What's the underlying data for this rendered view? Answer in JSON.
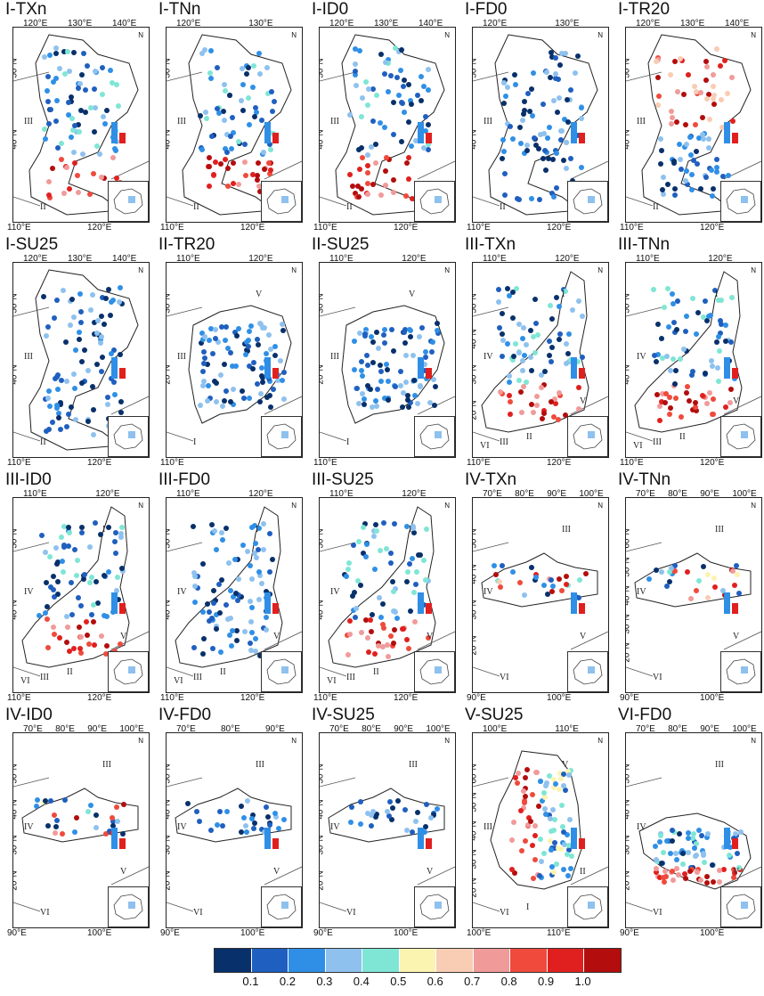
{
  "panels": [
    {
      "title": "I-TXn",
      "x_top": [
        "120°E",
        "130°E",
        "140°E"
      ],
      "x_bottom": [
        "110°E",
        "120°E"
      ],
      "y_ticks": [
        "50°N",
        "40°N"
      ],
      "region_labels": [
        "III",
        "II"
      ],
      "palette": "red-south"
    },
    {
      "title": "I-TNn",
      "x_top": [
        "120°E",
        "130°E"
      ],
      "x_bottom": [
        "110°E",
        "120°E"
      ],
      "y_ticks": [
        "50°N",
        "40°N"
      ],
      "region_labels": [
        "III",
        "II"
      ],
      "palette": "red-south"
    },
    {
      "title": "I-ID0",
      "x_top": [
        "120°E",
        "130°E",
        "140°E"
      ],
      "x_bottom": [
        "110°E",
        "120°E"
      ],
      "y_ticks": [
        "50°N",
        "40°N"
      ],
      "region_labels": [
        "III",
        "II"
      ],
      "palette": "red-south"
    },
    {
      "title": "I-FD0",
      "x_top": [
        "120°E",
        "130°E"
      ],
      "x_bottom": [
        "110°E",
        "120°E"
      ],
      "y_ticks": [
        "50°N",
        "40°N"
      ],
      "region_labels": [
        "III",
        "II"
      ],
      "palette": "blue"
    },
    {
      "title": "I-TR20",
      "x_top": [
        "120°E",
        "130°E",
        "140°E"
      ],
      "x_bottom": [
        "110°E",
        "120°E"
      ],
      "y_ticks": [
        "50°N",
        "40°N"
      ],
      "region_labels": [
        "III",
        "II"
      ],
      "palette": "red-north"
    },
    {
      "title": "I-SU25",
      "x_top": [
        "120°E",
        "130°E",
        "140°E"
      ],
      "x_bottom": [
        "110°E",
        "120°E"
      ],
      "y_ticks": [
        "50°N",
        "40°N"
      ],
      "region_labels": [
        "III",
        "II"
      ],
      "palette": "blue"
    },
    {
      "title": "II-TR20",
      "x_top": [
        "110°E",
        "120°E"
      ],
      "x_bottom": [
        "110°E"
      ],
      "y_ticks": [
        "30°N",
        "20°N"
      ],
      "region_labels": [
        "III",
        "I",
        "V"
      ],
      "palette": "blue"
    },
    {
      "title": "II-SU25",
      "x_top": [
        "110°E",
        "120°E"
      ],
      "x_bottom": [
        "110°E"
      ],
      "y_ticks": [
        "30°N",
        "20°N"
      ],
      "region_labels": [
        "III",
        "I",
        "V"
      ],
      "palette": "blue"
    },
    {
      "title": "III-TXn",
      "x_top": [
        "110°E",
        "120°E"
      ],
      "x_bottom": [
        "110°E",
        "120°E"
      ],
      "y_ticks": [
        "50°N",
        "40°N",
        "30°N",
        "20°N"
      ],
      "region_labels": [
        "IV",
        "III",
        "I",
        "V",
        "II",
        "VI"
      ],
      "palette": "red-south"
    },
    {
      "title": "III-TNn",
      "x_top": [
        "110°E",
        "120°E"
      ],
      "x_bottom": [
        "110°E",
        "120°E"
      ],
      "y_ticks": [
        "50°N",
        "40°N"
      ],
      "region_labels": [
        "IV",
        "III",
        "I",
        "V",
        "II",
        "VI"
      ],
      "palette": "red-south"
    },
    {
      "title": "III-ID0",
      "x_top": [
        "110°E",
        "120°E"
      ],
      "x_bottom": [
        "110°E",
        "120°E"
      ],
      "y_ticks": [
        "50°N",
        "40°N"
      ],
      "region_labels": [
        "IV",
        "III",
        "I",
        "V",
        "II",
        "VI"
      ],
      "palette": "red-south"
    },
    {
      "title": "III-FD0",
      "x_top": [
        "110°E",
        "120°E"
      ],
      "x_bottom": [
        "110°E",
        "120°E"
      ],
      "y_ticks": [
        "50°N",
        "40°N"
      ],
      "region_labels": [
        "IV",
        "III",
        "I",
        "V",
        "II",
        "VI"
      ],
      "palette": "blue"
    },
    {
      "title": "III-SU25",
      "x_top": [
        "110°E",
        "120°E"
      ],
      "x_bottom": [
        "110°E",
        "120°E"
      ],
      "y_ticks": [
        "50°N",
        "40°N"
      ],
      "region_labels": [
        "IV",
        "III",
        "I",
        "V",
        "II",
        "VI"
      ],
      "palette": "red-south"
    },
    {
      "title": "IV-TXn",
      "x_top": [
        "70°E",
        "80°E",
        "90°E",
        "100°E"
      ],
      "x_bottom": [
        "90°E",
        "100°E"
      ],
      "y_ticks": [
        "50°N",
        "40°N",
        "30°N",
        "20°N"
      ],
      "region_labels": [
        "IV",
        "VI",
        "III",
        "V"
      ],
      "palette": "mixed"
    },
    {
      "title": "IV-TNn",
      "x_top": [
        "70°E",
        "80°E",
        "90°E",
        "100°E"
      ],
      "x_bottom": [
        "90°E",
        "100°E"
      ],
      "y_ticks": [
        "60°N",
        "50°N",
        "40°N",
        "30°N",
        "20°N"
      ],
      "region_labels": [
        "IV",
        "VI",
        "III",
        "V"
      ],
      "palette": "mixed"
    },
    {
      "title": "IV-ID0",
      "x_top": [
        "70°E",
        "80°E",
        "90°E",
        "100°E"
      ],
      "x_bottom": [
        "90°E",
        "100°E"
      ],
      "y_ticks": [
        "50°N",
        "40°N",
        "30°N",
        "20°N"
      ],
      "region_labels": [
        "IV",
        "VI",
        "III",
        "V"
      ],
      "palette": "mixed"
    },
    {
      "title": "IV-FD0",
      "x_top": [
        "70°E",
        "80°E",
        "90°E"
      ],
      "x_bottom": [
        "90°E",
        "100°E"
      ],
      "y_ticks": [
        "50°N",
        "40°N",
        "30°N",
        "20°N"
      ],
      "region_labels": [
        "IV",
        "VI",
        "III",
        "V"
      ],
      "palette": "blue"
    },
    {
      "title": "IV-SU25",
      "x_top": [
        "70°E",
        "80°E",
        "90°E",
        "100°E"
      ],
      "x_bottom": [
        "90°E",
        "100°E"
      ],
      "y_ticks": [
        "50°N",
        "40°N",
        "30°N",
        "20°N"
      ],
      "region_labels": [
        "IV",
        "VI",
        "III",
        "V"
      ],
      "palette": "blue"
    },
    {
      "title": "V-SU25",
      "x_top": [
        "100°E",
        "110°E"
      ],
      "x_bottom": [
        "100°E",
        "110°E"
      ],
      "y_ticks": [
        "60°N",
        "50°N",
        "40°N",
        "30°N",
        "20°N"
      ],
      "region_labels": [
        "III",
        "VI",
        "V",
        "II",
        "I"
      ],
      "palette": "red-west"
    },
    {
      "title": "VI-FD0",
      "x_top": [
        "70°E",
        "80°E",
        "90°E",
        "100°E"
      ],
      "x_bottom": [
        "90°E",
        "100°E"
      ],
      "y_ticks": [
        "50°N",
        "40°N",
        "30°N",
        "20°N"
      ],
      "region_labels": [
        "IV",
        "VI",
        "III",
        "V"
      ],
      "palette": "red-south"
    }
  ],
  "colorbar": {
    "colors": [
      "#08306b",
      "#1f5fbf",
      "#2f8fe6",
      "#8ec1ee",
      "#7fe6d5",
      "#fbf3b0",
      "#f9ccb4",
      "#f19a9a",
      "#ef4a3c",
      "#e0201f",
      "#b30d0d"
    ],
    "ticks": [
      "0.1",
      "0.2",
      "0.3",
      "0.4",
      "0.5",
      "0.6",
      "0.7",
      "0.8",
      "0.9",
      "1.0"
    ]
  },
  "common_text": {
    "north": "N",
    "scale": "0  200  400 km"
  }
}
